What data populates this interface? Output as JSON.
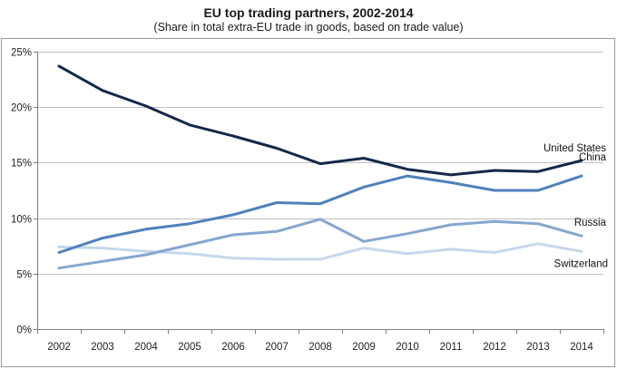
{
  "chart_data": {
    "type": "line",
    "title": "EU top trading partners, 2002-2014",
    "subtitle": "(Share in total extra-EU trade in goods, based on trade value)",
    "xlabel": "",
    "ylabel": "",
    "ylim": [
      0,
      25
    ],
    "yticks": [
      0,
      5,
      10,
      15,
      20,
      25
    ],
    "ytick_labels": [
      "0%",
      "5%",
      "10%",
      "15%",
      "20%",
      "25%"
    ],
    "categories": [
      "2002",
      "2003",
      "2004",
      "2005",
      "2006",
      "2007",
      "2008",
      "2009",
      "2010",
      "2011",
      "2012",
      "2013",
      "2014"
    ],
    "grid": true,
    "series": [
      {
        "name": "United States",
        "color": "#13294b",
        "values": [
          23.7,
          21.5,
          20.1,
          18.4,
          17.4,
          16.3,
          14.9,
          15.4,
          14.4,
          13.9,
          14.3,
          14.2,
          15.2
        ]
      },
      {
        "name": "China",
        "color": "#4f81bd",
        "values": [
          6.9,
          8.2,
          9.0,
          9.5,
          10.3,
          11.4,
          11.3,
          12.8,
          13.8,
          13.2,
          12.5,
          12.5,
          13.8
        ]
      },
      {
        "name": "Russia",
        "color": "#84a7d1",
        "values": [
          5.5,
          6.1,
          6.7,
          7.6,
          8.5,
          8.8,
          9.9,
          7.9,
          8.6,
          9.4,
          9.7,
          9.5,
          8.4
        ]
      },
      {
        "name": "Switzerland",
        "color": "#c5d7ec",
        "values": [
          7.4,
          7.3,
          7.0,
          6.8,
          6.4,
          6.3,
          6.3,
          7.3,
          6.8,
          7.2,
          6.9,
          7.7,
          7.0
        ]
      }
    ]
  }
}
